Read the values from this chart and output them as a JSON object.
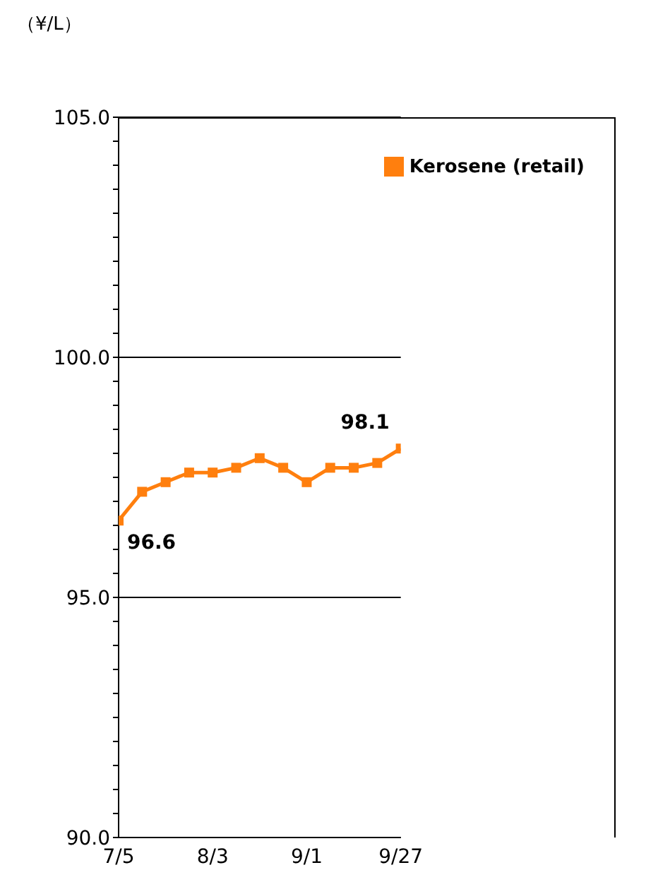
{
  "chart_data": {
    "type": "line",
    "ylabel": "（¥/L）",
    "categories": [
      "7/5",
      null,
      null,
      null,
      "8/3",
      null,
      null,
      null,
      "9/1",
      null,
      null,
      null,
      "9/27"
    ],
    "series": [
      {
        "name": "Kerosene (retail)",
        "color": "#ff7f0e",
        "values": [
          96.6,
          97.2,
          97.4,
          97.6,
          97.6,
          97.7,
          97.9,
          97.7,
          97.4,
          97.7,
          97.7,
          97.8,
          98.1
        ],
        "value_labels": [
          "96.6",
          null,
          null,
          null,
          null,
          null,
          null,
          null,
          null,
          null,
          null,
          null,
          "98.1"
        ]
      }
    ],
    "ylim": [
      90,
      105
    ],
    "yticks": [
      {
        "value": 90,
        "label": "90.0"
      },
      {
        "value": 90.5,
        "label": null
      },
      {
        "value": 91,
        "label": null
      },
      {
        "value": 91.5,
        "label": null
      },
      {
        "value": 92,
        "label": null
      },
      {
        "value": 92.5,
        "label": null
      },
      {
        "value": 93,
        "label": null
      },
      {
        "value": 93.5,
        "label": null
      },
      {
        "value": 94,
        "label": null
      },
      {
        "value": 94.5,
        "label": null
      },
      {
        "value": 95,
        "label": "95.0"
      },
      {
        "value": 95.5,
        "label": null
      },
      {
        "value": 96,
        "label": null
      },
      {
        "value": 96.5,
        "label": null
      },
      {
        "value": 97,
        "label": null
      },
      {
        "value": 97.5,
        "label": null
      },
      {
        "value": 98,
        "label": null
      },
      {
        "value": 98.5,
        "label": null
      },
      {
        "value": 99,
        "label": null
      },
      {
        "value": 99.5,
        "label": null
      },
      {
        "value": 100,
        "label": "100.0"
      },
      {
        "value": 100.5,
        "label": null
      },
      {
        "value": 101,
        "label": null
      },
      {
        "value": 101.5,
        "label": null
      },
      {
        "value": 102,
        "label": null
      },
      {
        "value": 102.5,
        "label": null
      },
      {
        "value": 103,
        "label": null
      },
      {
        "value": 103.5,
        "label": null
      },
      {
        "value": 104,
        "label": null
      },
      {
        "value": 104.5,
        "label": null
      },
      {
        "value": 105,
        "label": "105.0"
      }
    ],
    "grid": "y",
    "legend": "top right",
    "marker": "square",
    "line_style": "solid"
  }
}
